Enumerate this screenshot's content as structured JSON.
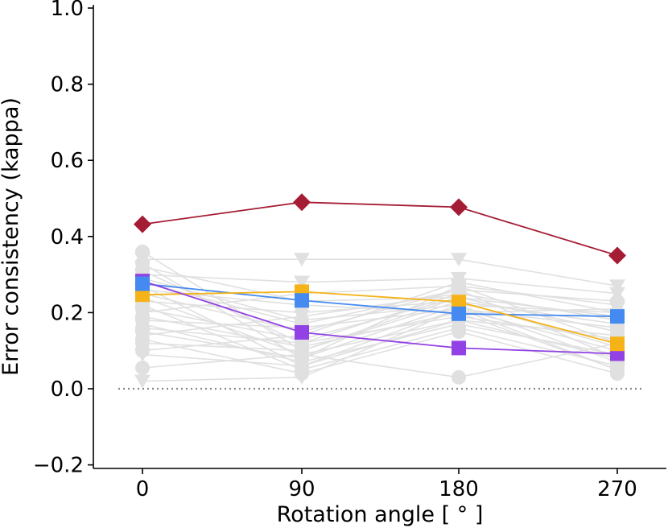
{
  "chart_data": {
    "type": "line",
    "title": "",
    "xlabel": "Rotation angle [$^\\circ$]",
    "xlabel_display": "Rotation angle [ ° ]",
    "ylabel": "Error consistency (kappa)",
    "categories": [
      "0",
      "90",
      "180",
      "270"
    ],
    "x": [
      0,
      90,
      180,
      270
    ],
    "ylim": [
      -0.22,
      1.0
    ],
    "yticks": [
      "−0.2",
      "0.0",
      "0.2",
      "0.4",
      "0.6",
      "0.8",
      "1.0"
    ],
    "ytick_values": [
      -0.2,
      0.0,
      0.2,
      0.4,
      0.6,
      0.8,
      1.0
    ],
    "reference_line": {
      "y": 0.0,
      "style": "dotted",
      "color": "#888888"
    },
    "background_models": {
      "color": "#e0e0e0",
      "series": [
        {
          "marker": "circle",
          "values": [
            0.36,
            0.1,
            0.24,
            0.15
          ]
        },
        {
          "marker": "circle",
          "values": [
            0.33,
            0.08,
            0.27,
            0.12
          ]
        },
        {
          "marker": "circle",
          "values": [
            0.31,
            0.12,
            0.25,
            0.18
          ]
        },
        {
          "marker": "triangle",
          "values": [
            0.34,
            0.34,
            0.34,
            0.27
          ]
        },
        {
          "marker": "triangle",
          "values": [
            0.3,
            0.28,
            0.29,
            0.25
          ]
        },
        {
          "marker": "circle",
          "values": [
            0.29,
            0.18,
            0.22,
            0.2
          ]
        },
        {
          "marker": "circle",
          "values": [
            0.27,
            0.06,
            0.21,
            0.1
          ]
        },
        {
          "marker": "triangle",
          "values": [
            0.26,
            0.22,
            0.2,
            0.21
          ]
        },
        {
          "marker": "circle",
          "values": [
            0.25,
            0.15,
            0.26,
            0.08
          ]
        },
        {
          "marker": "circle",
          "values": [
            0.24,
            0.09,
            0.18,
            0.14
          ]
        },
        {
          "marker": "triangle",
          "values": [
            0.23,
            0.2,
            0.23,
            0.17
          ]
        },
        {
          "marker": "circle",
          "values": [
            0.22,
            0.05,
            0.16,
            0.06
          ]
        },
        {
          "marker": "circle",
          "values": [
            0.21,
            0.13,
            0.24,
            0.19
          ]
        },
        {
          "marker": "triangle",
          "values": [
            0.2,
            0.25,
            0.27,
            0.22
          ]
        },
        {
          "marker": "circle",
          "values": [
            0.19,
            0.11,
            0.2,
            0.05
          ]
        },
        {
          "marker": "circle",
          "values": [
            0.18,
            0.16,
            0.21,
            0.16
          ]
        },
        {
          "marker": "triangle",
          "values": [
            0.17,
            0.07,
            0.17,
            0.09
          ]
        },
        {
          "marker": "circle",
          "values": [
            0.16,
            0.12,
            0.19,
            0.13
          ]
        },
        {
          "marker": "circle",
          "values": [
            0.15,
            0.08,
            0.22,
            0.07
          ]
        },
        {
          "marker": "triangle",
          "values": [
            0.14,
            0.19,
            0.25,
            0.18
          ]
        },
        {
          "marker": "circle",
          "values": [
            0.13,
            0.04,
            0.15,
            0.04
          ]
        },
        {
          "marker": "circle",
          "values": [
            0.12,
            0.1,
            0.23,
            0.11
          ]
        },
        {
          "marker": "circle",
          "values": [
            0.1,
            0.14,
            0.28,
            0.2
          ]
        },
        {
          "marker": "triangle",
          "values": [
            0.09,
            0.06,
            0.18,
            0.08
          ]
        },
        {
          "marker": "circle",
          "values": [
            0.055,
            0.09,
            0.03,
            0.12
          ]
        },
        {
          "marker": "triangle",
          "values": [
            0.02,
            0.03,
            0.21,
            0.05
          ]
        },
        {
          "marker": "circle",
          "values": [
            0.28,
            0.17,
            0.26,
            0.23
          ]
        },
        {
          "marker": "triangle",
          "values": [
            0.32,
            0.23,
            0.24,
            0.15
          ]
        }
      ]
    },
    "series": [
      {
        "name": "red",
        "color": "#a51d35",
        "marker": "diamond",
        "values": [
          0.432,
          0.49,
          0.477,
          0.35
        ]
      },
      {
        "name": "blue",
        "color": "#448af0",
        "marker": "square",
        "values": [
          0.276,
          0.232,
          0.197,
          0.19
        ]
      },
      {
        "name": "orange",
        "color": "#f5b318",
        "marker": "square",
        "values": [
          0.247,
          0.255,
          0.228,
          0.118
        ]
      },
      {
        "name": "purple",
        "color": "#9241e4",
        "marker": "square",
        "values": [
          0.283,
          0.148,
          0.107,
          0.092
        ]
      }
    ]
  }
}
